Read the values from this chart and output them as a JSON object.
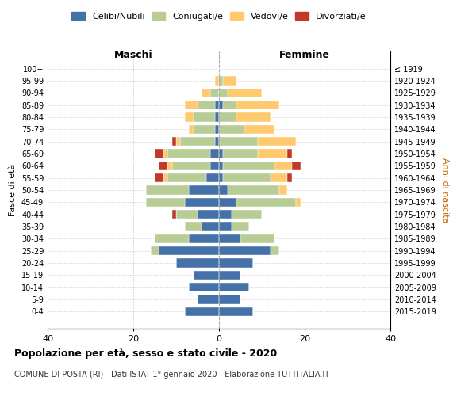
{
  "age_groups": [
    "100+",
    "95-99",
    "90-94",
    "85-89",
    "80-84",
    "75-79",
    "70-74",
    "65-69",
    "60-64",
    "55-59",
    "50-54",
    "45-49",
    "40-44",
    "35-39",
    "30-34",
    "25-29",
    "20-24",
    "15-19",
    "10-14",
    "5-9",
    "0-4"
  ],
  "birth_years": [
    "≤ 1919",
    "1920-1924",
    "1925-1929",
    "1930-1934",
    "1935-1939",
    "1940-1944",
    "1945-1949",
    "1950-1954",
    "1955-1959",
    "1960-1964",
    "1965-1969",
    "1970-1974",
    "1975-1979",
    "1980-1984",
    "1985-1989",
    "1990-1994",
    "1995-1999",
    "2000-2004",
    "2005-2009",
    "2010-2014",
    "2015-2019"
  ],
  "maschi": {
    "celibi": [
      0,
      0,
      0,
      1,
      1,
      1,
      1,
      2,
      2,
      3,
      7,
      8,
      5,
      4,
      7,
      14,
      10,
      6,
      7,
      5,
      8
    ],
    "coniugati": [
      0,
      0,
      2,
      4,
      5,
      5,
      8,
      10,
      9,
      9,
      10,
      9,
      5,
      4,
      8,
      2,
      0,
      0,
      0,
      0,
      0
    ],
    "vedovi": [
      0,
      1,
      2,
      3,
      2,
      1,
      1,
      1,
      1,
      1,
      0,
      0,
      0,
      0,
      0,
      0,
      0,
      0,
      0,
      0,
      0
    ],
    "divorziati": [
      0,
      0,
      0,
      0,
      0,
      0,
      1,
      2,
      2,
      2,
      0,
      0,
      1,
      0,
      0,
      0,
      0,
      0,
      0,
      0,
      0
    ]
  },
  "femmine": {
    "nubili": [
      0,
      0,
      0,
      1,
      0,
      0,
      0,
      1,
      1,
      1,
      2,
      4,
      3,
      3,
      5,
      12,
      8,
      5,
      7,
      5,
      8
    ],
    "coniugate": [
      0,
      1,
      2,
      3,
      4,
      6,
      9,
      8,
      12,
      11,
      12,
      14,
      7,
      4,
      8,
      2,
      0,
      0,
      0,
      0,
      0
    ],
    "vedove": [
      0,
      3,
      8,
      10,
      8,
      7,
      9,
      7,
      4,
      4,
      2,
      1,
      0,
      0,
      0,
      0,
      0,
      0,
      0,
      0,
      0
    ],
    "divorziate": [
      0,
      0,
      0,
      0,
      0,
      0,
      0,
      1,
      2,
      1,
      0,
      0,
      0,
      0,
      0,
      0,
      0,
      0,
      0,
      0,
      0
    ]
  },
  "colors": {
    "celibi": "#4472a8",
    "coniugati": "#b8cc96",
    "vedovi": "#ffc96e",
    "divorziati": "#c0392b"
  },
  "xlim": 40,
  "title": "Popolazione per età, sesso e stato civile - 2020",
  "subtitle": "COMUNE DI POSTA (RI) - Dati ISTAT 1° gennaio 2020 - Elaborazione TUTTITALIA.IT",
  "ylabel_left": "Fasce di età",
  "ylabel_right": "Anni di nascita",
  "xlabel_maschi": "Maschi",
  "xlabel_femmine": "Femmine",
  "legend_labels": [
    "Celibi/Nubili",
    "Coniugati/e",
    "Vedovi/e",
    "Divorziati/e"
  ]
}
